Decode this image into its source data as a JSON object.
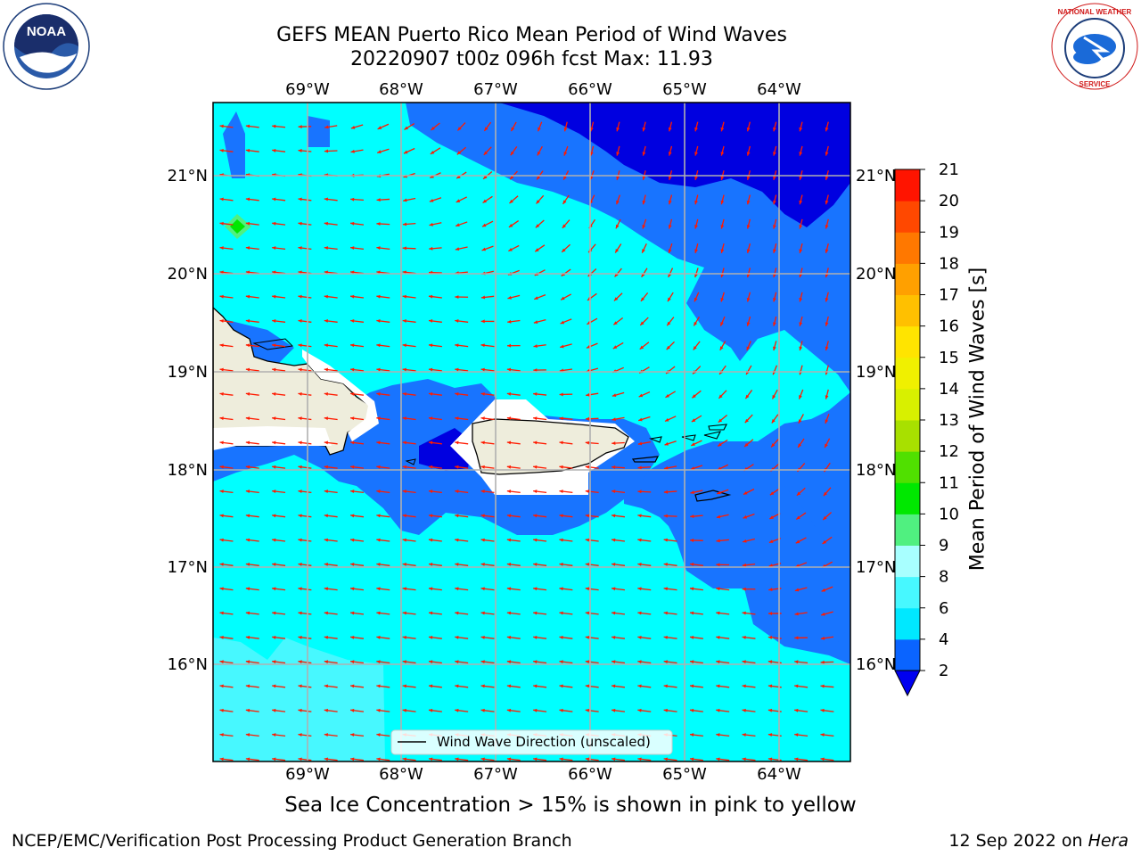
{
  "title": {
    "line1": "GEFS MEAN Puerto Rico Mean Period of Wind Waves",
    "line2": "20220907 t00z 096h fcst   Max: 11.93"
  },
  "logos": {
    "left": "NOAA",
    "right": "NATIONAL WEATHER SERVICE"
  },
  "map": {
    "lon_labels": [
      "69°W",
      "68°W",
      "67°W",
      "66°W",
      "65°W",
      "64°W"
    ],
    "lat_labels": [
      "21°N",
      "20°N",
      "19°N",
      "18°N",
      "17°N",
      "16°N"
    ],
    "legend": "Wind Wave Direction (unscaled)",
    "colors": {
      "ocean_light": "#00ffff",
      "ocean_mid": "#1874ff",
      "ocean_deep": "#0000e0",
      "land": "#eeeddc",
      "arrow": "#ff1a00",
      "grid": "#b0b0b0"
    }
  },
  "colorbar": {
    "label": "Mean Period of Wind Waves [s]",
    "ticks": [
      "2",
      "4",
      "6",
      "8",
      "9",
      "10",
      "11",
      "12",
      "13",
      "14",
      "15",
      "16",
      "17",
      "18",
      "19",
      "20",
      "21"
    ],
    "bands": [
      "#0a64ff",
      "#00e8ff",
      "#47f8ff",
      "#a8ffff",
      "#50f080",
      "#00e800",
      "#50e000",
      "#a8e000",
      "#d8f000",
      "#f0f000",
      "#ffe400",
      "#ffc000",
      "#ffa000",
      "#ff7800",
      "#ff4800",
      "#ff1400"
    ],
    "extend_color": "#0000f0"
  },
  "subtitle": "Sea Ice Concentration > 15% is shown in pink to yellow",
  "footer": {
    "left": "NCEP/EMC/Verification Post Processing Product Generation Branch",
    "right_date": "12 Sep 2022 on ",
    "right_host": "Hera"
  }
}
